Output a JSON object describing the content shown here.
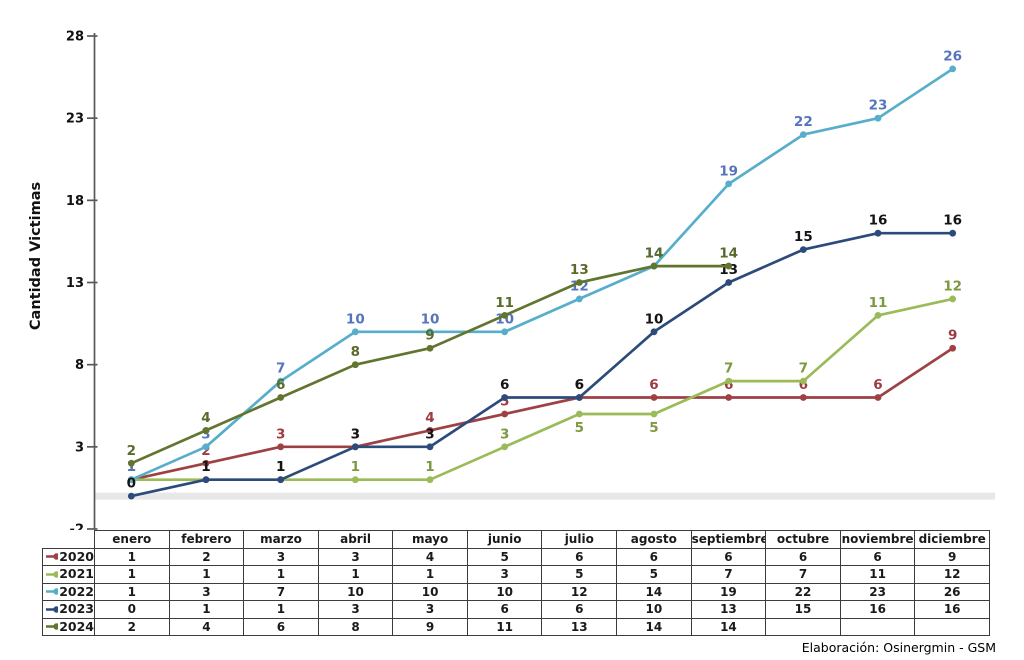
{
  "chart_data": {
    "type": "line",
    "title": "",
    "xlabel": "",
    "ylabel": "Cantidad Victimas",
    "ylim": [
      -2,
      28
    ],
    "yticks": [
      -2,
      3,
      8,
      13,
      18,
      23,
      28
    ],
    "grid": false,
    "zero_highlight_band": {
      "value": 0,
      "color": "#E8E8E8"
    },
    "legend_position": "table-left-column",
    "categories": [
      "enero",
      "febrero",
      "marzo",
      "abril",
      "mayo",
      "junio",
      "julio",
      "agosto",
      "septiembre",
      "octubre",
      "noviembre",
      "diciembre"
    ],
    "series": [
      {
        "name": "2020",
        "color": "#9E4145",
        "label_color": "#9C3B41",
        "values": [
          1,
          2,
          3,
          3,
          4,
          5,
          6,
          6,
          6,
          6,
          6,
          9
        ],
        "label_below_idx": []
      },
      {
        "name": "2021",
        "color": "#9BBB59",
        "label_color": "#7C9940",
        "values": [
          1,
          1,
          1,
          1,
          1,
          3,
          5,
          5,
          7,
          7,
          11,
          12
        ],
        "label_below_idx": [
          6,
          7
        ]
      },
      {
        "name": "2022",
        "color": "#57AECB",
        "label_color": "#5574BD",
        "values": [
          1,
          3,
          7,
          10,
          10,
          10,
          12,
          14,
          19,
          22,
          23,
          26
        ],
        "label_below_idx": []
      },
      {
        "name": "2023",
        "color": "#2C4B7A",
        "label_color": "#141414",
        "values": [
          0,
          1,
          1,
          3,
          3,
          6,
          6,
          10,
          13,
          15,
          16,
          16
        ],
        "label_below_idx": []
      },
      {
        "name": "2024",
        "color": "#62752F",
        "label_color": "#596B2C",
        "values": [
          2,
          4,
          6,
          8,
          9,
          11,
          13,
          14,
          14,
          null,
          null,
          null
        ],
        "label_below_idx": []
      }
    ],
    "axis_color": "#58585a",
    "tick_label_color": "#111111"
  },
  "footer": {
    "credit": "Elaboración: Osinergmin - GSM"
  }
}
